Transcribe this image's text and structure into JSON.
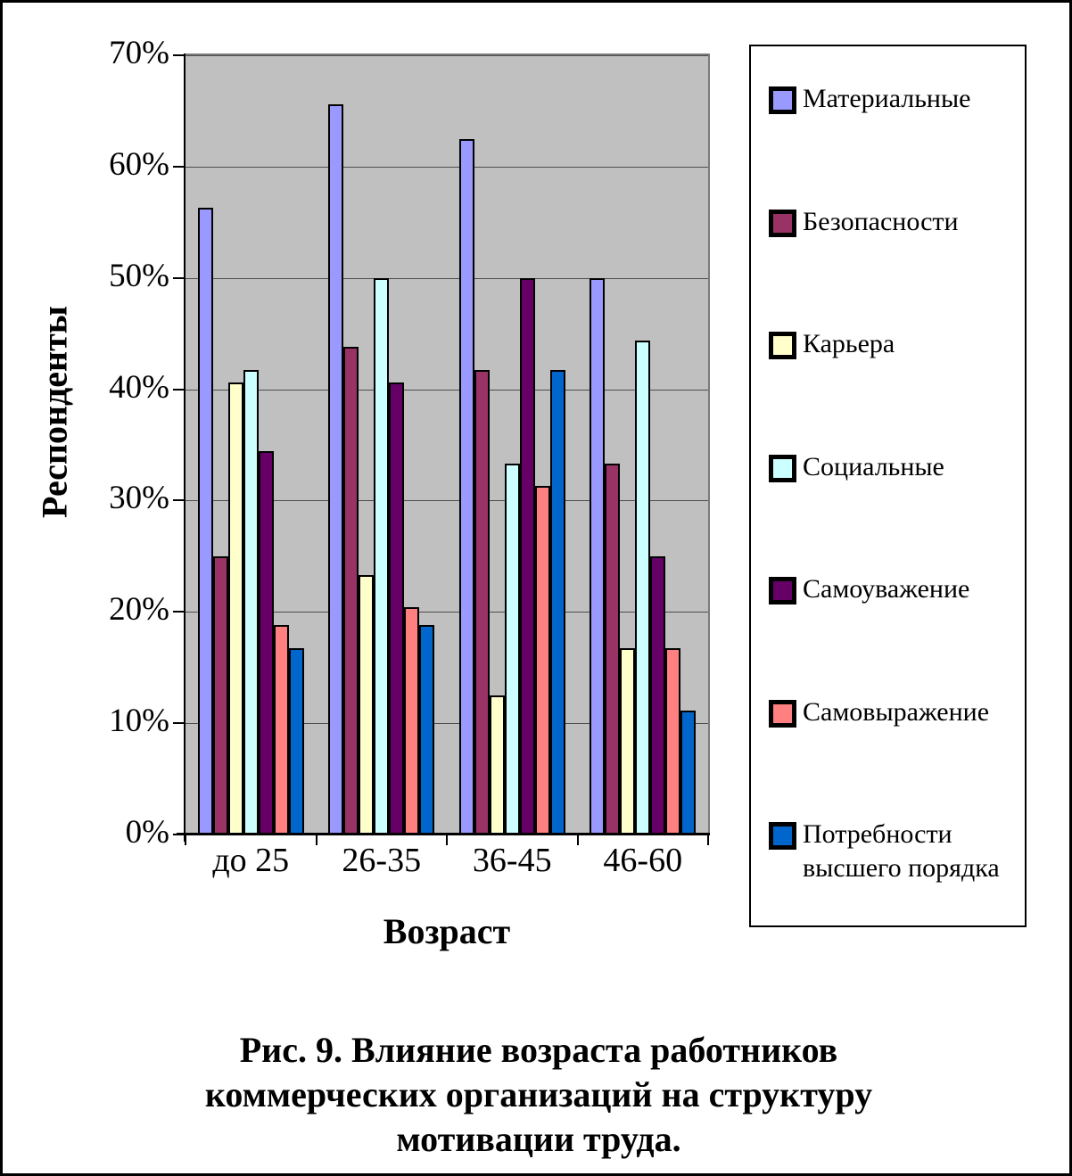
{
  "chart_data": {
    "type": "bar",
    "title": "Рис. 9. Влияние возраста работников коммерческих организаций на структуру мотивации труда.",
    "xlabel": "Возраст",
    "ylabel": "Респонденты",
    "categories": [
      "до 25",
      "26-35",
      "36-45",
      "46-60"
    ],
    "series": [
      {
        "name": "Материальные",
        "color": "#9999FF",
        "values": [
          56.3,
          65.6,
          62.5,
          50.0
        ]
      },
      {
        "name": "Безопасности",
        "color": "#993366",
        "values": [
          25.0,
          43.8,
          41.7,
          33.3
        ]
      },
      {
        "name": "Карьера",
        "color": "#FFFFCC",
        "values": [
          40.6,
          23.3,
          12.5,
          16.7
        ]
      },
      {
        "name": "Социальные",
        "color": "#CCFFFF",
        "values": [
          41.7,
          50.0,
          33.3,
          44.4
        ]
      },
      {
        "name": "Самоуважение",
        "color": "#660066",
        "values": [
          34.4,
          40.6,
          50.0,
          25.0
        ]
      },
      {
        "name": "Самовыражение",
        "color": "#FF8080",
        "values": [
          18.8,
          20.4,
          31.3,
          16.7
        ]
      },
      {
        "name": "Потребности высшего порядка",
        "color": "#0066CC",
        "values": [
          16.7,
          18.8,
          41.7,
          11.1
        ]
      }
    ],
    "ylim": [
      0,
      70
    ],
    "ytick_step": 10,
    "ytick_labels": [
      "0%",
      "10%",
      "20%",
      "30%",
      "40%",
      "50%",
      "60%",
      "70%"
    ],
    "grid": true,
    "legend_position": "right",
    "plot_bg": "#C0C0C0",
    "gridline_color": "#4d4d4d"
  },
  "caption": {
    "lines": [
      "Рис. 9. Влияние возраста работников",
      "коммерческих организаций на структуру",
      "мотивации труда."
    ]
  }
}
